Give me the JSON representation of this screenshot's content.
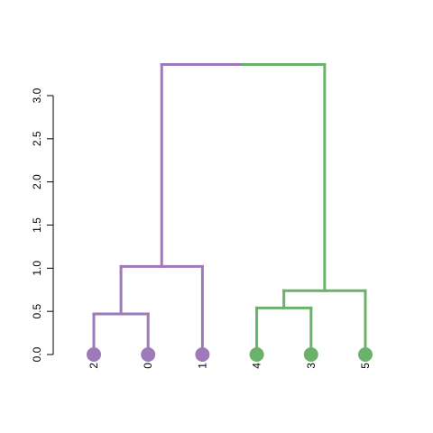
{
  "chart_data": {
    "type": "dendrogram",
    "title": "",
    "xlabel": "",
    "ylabel": "",
    "ylim": [
      0,
      3.0
    ],
    "y_ticks": [
      "0.0",
      "0.5",
      "1.0",
      "1.5",
      "2.0",
      "2.5",
      "3.0"
    ],
    "grid": false,
    "leaf_order": [
      "2",
      "0",
      "1",
      "4",
      "3",
      "5"
    ],
    "leaves": [
      {
        "label": "2",
        "cluster": "purple"
      },
      {
        "label": "0",
        "cluster": "purple"
      },
      {
        "label": "1",
        "cluster": "purple"
      },
      {
        "label": "4",
        "cluster": "green"
      },
      {
        "label": "3",
        "cluster": "green"
      },
      {
        "label": "5",
        "cluster": "green"
      }
    ],
    "merges": [
      {
        "left": "2",
        "right": "0",
        "height": 0.47,
        "cluster": "purple"
      },
      {
        "left": "4",
        "right": "3",
        "height": 0.54,
        "cluster": "green"
      },
      {
        "left": "4+3",
        "right": "5",
        "height": 0.74,
        "cluster": "green"
      },
      {
        "left": "2+0",
        "right": "1",
        "height": 1.02,
        "cluster": "purple"
      },
      {
        "left": "2+0+1",
        "right": "4+3+5",
        "height": 3.36,
        "cluster": "mixed"
      }
    ],
    "colors": {
      "purple": "#9e7ab8",
      "green": "#6ab26a",
      "axis": "#000000"
    }
  }
}
